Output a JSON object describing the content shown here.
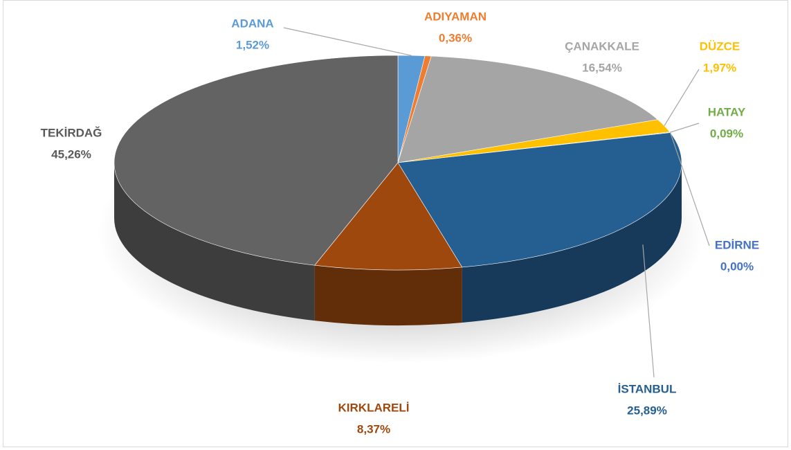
{
  "chart_data": {
    "type": "pie",
    "categories": [
      "ADANA",
      "ADIYAMAN",
      "ÇANAKKALE",
      "DÜZCE",
      "HATAY",
      "EDİRNE",
      "İSTANBUL",
      "KIRKLARELİ",
      "TEKİRDAĞ"
    ],
    "values": [
      1.52,
      0.36,
      16.54,
      1.97,
      0.09,
      0.0,
      25.89,
      8.37,
      45.26
    ],
    "value_labels": [
      "1,52%",
      "0,36%",
      "16,54%",
      "1,97%",
      "0,09%",
      "0,00%",
      "25,89%",
      "8,37%",
      "45,26%"
    ],
    "colors": [
      "#5b9bd5",
      "#ed7d31",
      "#a5a5a5",
      "#ffc000",
      "#70ad47",
      "#4472c4",
      "#255e91",
      "#9e480e",
      "#636363"
    ]
  }
}
